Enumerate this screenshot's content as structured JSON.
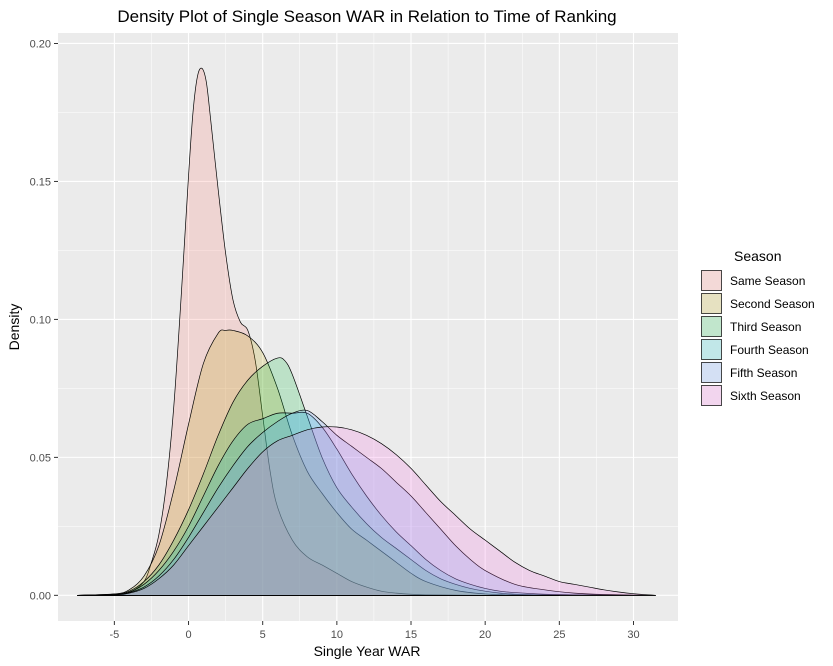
{
  "chart_data": {
    "type": "area",
    "title": "Density Plot of Single Season WAR in Relation to Time of Ranking",
    "xlabel": "Single Year WAR",
    "ylabel": "Density",
    "xlim": [
      -8.8,
      33.0
    ],
    "ylim": [
      -0.0093,
      0.2038
    ],
    "xticks": [
      -5,
      0,
      5,
      10,
      15,
      20,
      25,
      30
    ],
    "xtick_labels": [
      "-5",
      "0",
      "5",
      "10",
      "15",
      "20",
      "25",
      "30"
    ],
    "yticks": [
      0.0,
      0.05,
      0.1,
      0.15,
      0.2
    ],
    "ytick_labels": [
      "0.00",
      "0.05",
      "0.10",
      "0.15",
      "0.20"
    ],
    "grid": true,
    "legend": {
      "title": "Season",
      "position": "right"
    },
    "series": [
      {
        "name": "Same Season",
        "color": "#F8766D",
        "x": [
          -7.5,
          -5,
          -4,
          -3,
          -2.5,
          -2,
          -1.5,
          -1,
          -0.5,
          0,
          0.3,
          0.6,
          0.9,
          1.2,
          1.5,
          2,
          2.5,
          3,
          3.5,
          4,
          4.5,
          5,
          5.5,
          6,
          7,
          8,
          9,
          10,
          11,
          12,
          13,
          14,
          15,
          16,
          18,
          20,
          22,
          25
        ],
        "y": [
          0.0,
          0.0,
          0.001,
          0.005,
          0.012,
          0.022,
          0.04,
          0.068,
          0.108,
          0.152,
          0.175,
          0.188,
          0.191,
          0.186,
          0.172,
          0.147,
          0.124,
          0.107,
          0.099,
          0.096,
          0.085,
          0.065,
          0.045,
          0.032,
          0.02,
          0.014,
          0.011,
          0.008,
          0.005,
          0.003,
          0.0015,
          0.0008,
          0.0004,
          0.0002,
          0.0001,
          0.0,
          0.0,
          0.0
        ]
      },
      {
        "name": "Second Season",
        "color": "#B79F00",
        "x": [
          -7.5,
          -5,
          -4,
          -3,
          -2,
          -1,
          0,
          1,
          2,
          2.5,
          3,
          4,
          5,
          6,
          7,
          8,
          9,
          10,
          11,
          12,
          13,
          14,
          15,
          16,
          18,
          20,
          22,
          25
        ],
        "y": [
          0.0,
          0.0005,
          0.002,
          0.007,
          0.018,
          0.038,
          0.062,
          0.084,
          0.095,
          0.096,
          0.096,
          0.094,
          0.088,
          0.075,
          0.058,
          0.045,
          0.037,
          0.03,
          0.024,
          0.02,
          0.016,
          0.012,
          0.008,
          0.005,
          0.0018,
          0.0005,
          0.0001,
          0.0
        ]
      },
      {
        "name": "Third Season",
        "color": "#00BA38",
        "x": [
          -7.5,
          -5,
          -4,
          -3,
          -2,
          -1,
          0,
          1,
          2,
          3,
          4,
          5,
          6,
          6.5,
          7,
          8,
          9,
          10,
          11,
          12,
          13,
          14,
          15,
          16,
          17,
          18,
          19,
          20,
          21,
          22,
          25
        ],
        "y": [
          0.0,
          0.0005,
          0.0015,
          0.005,
          0.011,
          0.02,
          0.031,
          0.044,
          0.058,
          0.07,
          0.078,
          0.083,
          0.086,
          0.085,
          0.08,
          0.065,
          0.05,
          0.039,
          0.032,
          0.026,
          0.021,
          0.017,
          0.013,
          0.009,
          0.006,
          0.004,
          0.0025,
          0.0015,
          0.0008,
          0.0004,
          0.0
        ]
      },
      {
        "name": "Fourth Season",
        "color": "#00BFC4",
        "x": [
          -7.5,
          -5,
          -4,
          -3,
          -2,
          -1,
          0,
          1,
          2,
          3,
          4,
          5,
          6,
          7,
          8,
          9,
          10,
          11,
          12,
          13,
          14,
          15,
          16,
          17,
          18,
          19,
          20,
          21,
          22,
          24,
          26,
          28,
          31.5
        ],
        "y": [
          0.0,
          0.0003,
          0.0012,
          0.004,
          0.009,
          0.016,
          0.025,
          0.036,
          0.047,
          0.056,
          0.062,
          0.064,
          0.066,
          0.066,
          0.066,
          0.061,
          0.053,
          0.044,
          0.036,
          0.029,
          0.023,
          0.018,
          0.013,
          0.009,
          0.006,
          0.004,
          0.0025,
          0.0015,
          0.001,
          0.0004,
          0.0002,
          0.0001,
          0.0
        ]
      },
      {
        "name": "Fifth Season",
        "color": "#619CFF",
        "x": [
          -7.5,
          -5,
          -4,
          -3,
          -2,
          -1,
          0,
          1,
          2,
          3,
          4,
          5,
          6,
          7,
          8,
          9,
          10,
          11,
          12,
          13,
          14,
          15,
          16,
          17,
          18,
          19,
          20,
          22,
          24,
          26,
          28,
          31.5
        ],
        "y": [
          0.0,
          0.0002,
          0.001,
          0.003,
          0.007,
          0.013,
          0.021,
          0.03,
          0.039,
          0.047,
          0.054,
          0.059,
          0.063,
          0.066,
          0.067,
          0.063,
          0.058,
          0.054,
          0.05,
          0.046,
          0.041,
          0.036,
          0.03,
          0.024,
          0.018,
          0.013,
          0.009,
          0.004,
          0.002,
          0.0008,
          0.0003,
          0.0
        ]
      },
      {
        "name": "Sixth Season",
        "color": "#F564E3",
        "x": [
          -7.5,
          -5,
          -4,
          -3,
          -2,
          -1,
          0,
          1,
          2,
          3,
          4,
          5,
          6,
          7,
          8,
          9,
          10,
          11,
          12,
          13,
          14,
          15,
          16,
          17,
          18,
          19,
          20,
          21,
          22,
          23,
          24,
          25,
          26,
          27,
          28,
          29,
          30,
          31.5
        ],
        "y": [
          0.0,
          0.0002,
          0.0008,
          0.0025,
          0.006,
          0.011,
          0.018,
          0.025,
          0.032,
          0.039,
          0.046,
          0.052,
          0.056,
          0.058,
          0.06,
          0.061,
          0.061,
          0.06,
          0.058,
          0.055,
          0.051,
          0.046,
          0.04,
          0.034,
          0.029,
          0.024,
          0.02,
          0.016,
          0.012,
          0.009,
          0.007,
          0.005,
          0.004,
          0.003,
          0.002,
          0.0012,
          0.0006,
          0.0
        ]
      }
    ]
  }
}
